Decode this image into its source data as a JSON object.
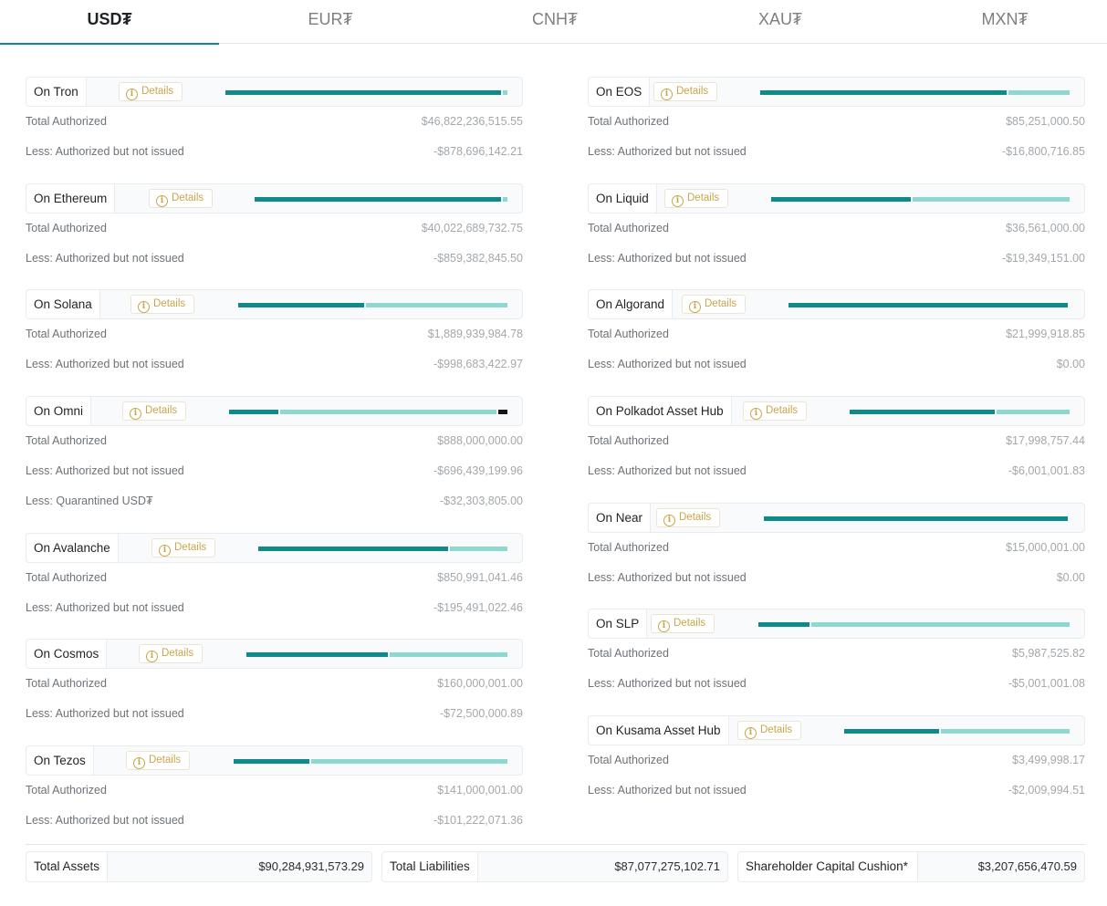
{
  "tabs": [
    "USD₮",
    "EUR₮",
    "CNH₮",
    "XAU₮",
    "MXN₮"
  ],
  "details_label": "Details",
  "chains": [
    {
      "name": "On Tron",
      "rows": [
        {
          "label": "Total Authorized",
          "value": "$46,822,236,515.55"
        },
        {
          "label": "Less: Authorized but not issued",
          "value": "-$878,696,142.21"
        }
      ]
    },
    {
      "name": "On Ethereum",
      "rows": [
        {
          "label": "Total Authorized",
          "value": "$40,022,689,732.75"
        },
        {
          "label": "Less: Authorized but not issued",
          "value": "-$859,382,845.50"
        }
      ]
    },
    {
      "name": "On Solana",
      "rows": [
        {
          "label": "Total Authorized",
          "value": "$1,889,939,984.78"
        },
        {
          "label": "Less: Authorized but not issued",
          "value": "-$998,683,422.97"
        }
      ]
    },
    {
      "name": "On Omni",
      "rows": [
        {
          "label": "Total Authorized",
          "value": "$888,000,000.00"
        },
        {
          "label": "Less: Authorized but not issued",
          "value": "-$696,439,199.96"
        },
        {
          "label": "Less: Quarantined USD₮",
          "value": "-$32,303,805.00"
        }
      ]
    },
    {
      "name": "On Avalanche",
      "rows": [
        {
          "label": "Total Authorized",
          "value": "$850,991,041.46"
        },
        {
          "label": "Less: Authorized but not issued",
          "value": "-$195,491,022.46"
        }
      ]
    },
    {
      "name": "On Cosmos",
      "rows": [
        {
          "label": "Total Authorized",
          "value": "$160,000,001.00"
        },
        {
          "label": "Less: Authorized but not issued",
          "value": "-$72,500,000.89"
        }
      ]
    },
    {
      "name": "On Tezos",
      "rows": [
        {
          "label": "Total Authorized",
          "value": "$141,000,001.00"
        },
        {
          "label": "Less: Authorized but not issued",
          "value": "-$101,222,071.36"
        }
      ]
    },
    {
      "name": "On EOS",
      "rows": [
        {
          "label": "Total Authorized",
          "value": "$85,251,000.50"
        },
        {
          "label": "Less: Authorized but not issued",
          "value": "-$16,800,716.85"
        }
      ]
    },
    {
      "name": "On Liquid",
      "rows": [
        {
          "label": "Total Authorized",
          "value": "$36,561,000.00"
        },
        {
          "label": "Less: Authorized but not issued",
          "value": "-$19,349,151.00"
        }
      ]
    },
    {
      "name": "On Algorand",
      "rows": [
        {
          "label": "Total Authorized",
          "value": "$21,999,918.85"
        },
        {
          "label": "Less: Authorized but not issued",
          "value": "$0.00"
        }
      ]
    },
    {
      "name": "On Polkadot Asset Hub",
      "rows": [
        {
          "label": "Total Authorized",
          "value": "$17,998,757.44"
        },
        {
          "label": "Less: Authorized but not issued",
          "value": "-$6,001,001.83"
        }
      ]
    },
    {
      "name": "On Near",
      "rows": [
        {
          "label": "Total Authorized",
          "value": "$15,000,001.00"
        },
        {
          "label": "Less: Authorized but not issued",
          "value": "$0.00"
        }
      ]
    },
    {
      "name": "On SLP",
      "rows": [
        {
          "label": "Total Authorized",
          "value": "$5,987,525.82"
        },
        {
          "label": "Less: Authorized but not issued",
          "value": "-$5,001,001.08"
        }
      ]
    },
    {
      "name": "On Kusama Asset Hub",
      "rows": [
        {
          "label": "Total Authorized",
          "value": "$3,499,998.17"
        },
        {
          "label": "Less: Authorized but not issued",
          "value": "-$2,009,994.51"
        }
      ]
    }
  ],
  "totals": [
    {
      "label": "Total Assets",
      "value": "$90,284,931,573.29"
    },
    {
      "label": "Total Liabilities",
      "value": "$87,077,275,102.71"
    },
    {
      "label": "Shareholder Capital Cushion*",
      "value": "$3,207,656,470.59"
    }
  ],
  "colors": {
    "accent": "#0f8a8b",
    "accent_light": "#8fd8cf",
    "quarantined": "#151515",
    "details": "#c9a64b"
  }
}
